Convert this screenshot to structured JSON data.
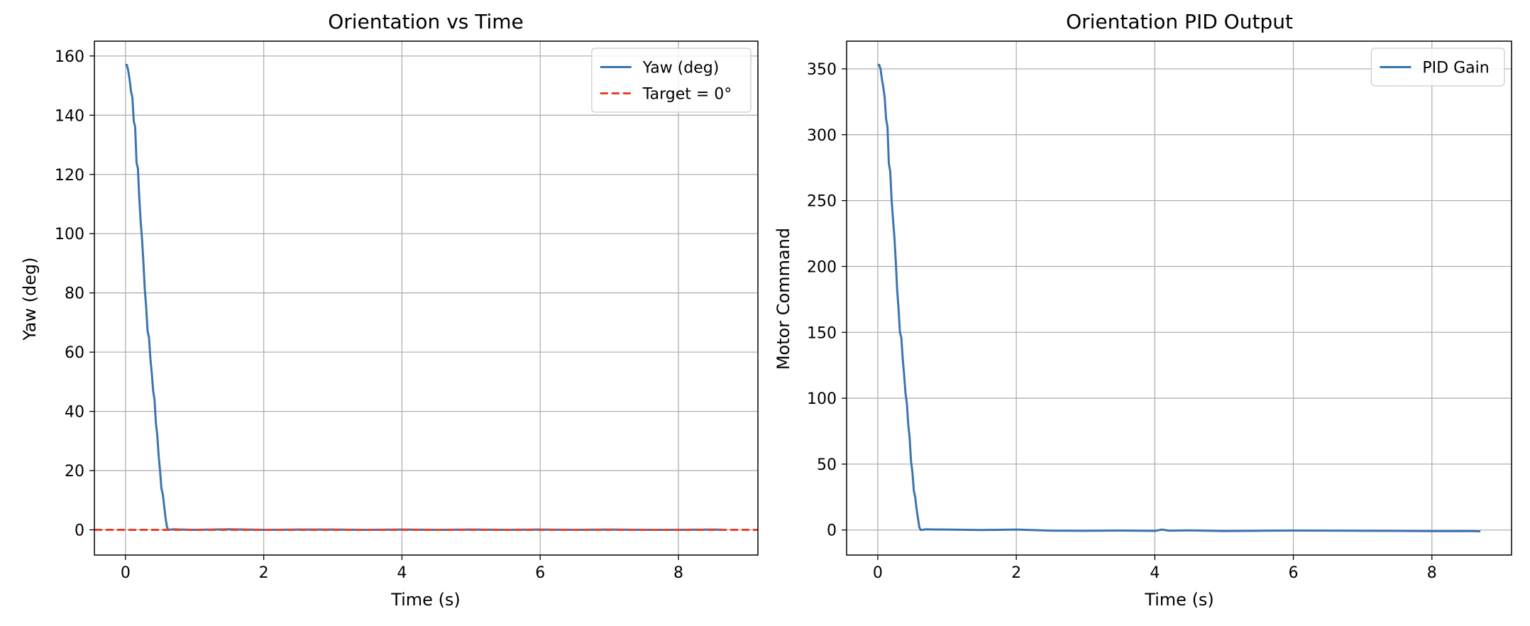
{
  "chart_data": [
    {
      "type": "line",
      "title": "Orientation vs Time",
      "xlabel": "Time (s)",
      "ylabel": "Yaw (deg)",
      "xlim": [
        -0.45,
        9.15
      ],
      "ylim": [
        -8.5,
        165
      ],
      "xticks": [
        0,
        2,
        4,
        6,
        8
      ],
      "yticks": [
        0,
        20,
        40,
        60,
        80,
        100,
        120,
        140,
        160
      ],
      "grid": true,
      "legend_position": "top-right",
      "series": [
        {
          "name": "Yaw (deg)",
          "color": "#3b75af",
          "style": "solid",
          "x": [
            0.0,
            0.02,
            0.04,
            0.06,
            0.08,
            0.1,
            0.12,
            0.14,
            0.16,
            0.18,
            0.2,
            0.22,
            0.24,
            0.26,
            0.28,
            0.3,
            0.32,
            0.34,
            0.36,
            0.38,
            0.4,
            0.42,
            0.44,
            0.46,
            0.48,
            0.5,
            0.52,
            0.54,
            0.56,
            0.58,
            0.6,
            0.62,
            0.7,
            0.8,
            1.0,
            1.5,
            2.0,
            2.5,
            3.0,
            3.5,
            4.0,
            4.5,
            5.0,
            5.5,
            6.0,
            6.5,
            7.0,
            7.5,
            8.0,
            8.5,
            8.7
          ],
          "y": [
            157,
            157,
            155,
            152,
            148,
            146,
            138,
            136,
            124,
            122,
            112,
            104,
            98,
            90,
            81,
            75,
            67,
            65,
            58,
            53,
            47,
            44,
            36,
            32,
            25,
            20,
            14,
            12,
            8,
            4,
            1,
            0,
            0.2,
            0.1,
            0,
            0.2,
            0,
            0.1,
            0.1,
            0,
            0.1,
            0,
            0.1,
            0,
            0.1,
            0,
            0.1,
            0,
            0,
            0.1,
            0
          ]
        },
        {
          "name": "Target = 0°",
          "color": "#e8412b",
          "style": "dashed",
          "x": [
            -0.45,
            9.15
          ],
          "y": [
            0,
            0
          ]
        }
      ]
    },
    {
      "type": "line",
      "title": "Orientation PID Output",
      "xlabel": "Time (s)",
      "ylabel": "Motor Command",
      "xlim": [
        -0.45,
        9.15
      ],
      "ylim": [
        -19,
        371
      ],
      "xticks": [
        0,
        2,
        4,
        6,
        8
      ],
      "yticks": [
        0,
        50,
        100,
        150,
        200,
        250,
        300,
        350
      ],
      "grid": true,
      "legend_position": "top-right",
      "series": [
        {
          "name": "PID Gain",
          "color": "#3b75af",
          "style": "solid",
          "x": [
            0.0,
            0.02,
            0.04,
            0.06,
            0.08,
            0.1,
            0.12,
            0.14,
            0.16,
            0.18,
            0.2,
            0.22,
            0.24,
            0.26,
            0.28,
            0.3,
            0.32,
            0.34,
            0.36,
            0.38,
            0.4,
            0.42,
            0.44,
            0.46,
            0.48,
            0.5,
            0.52,
            0.54,
            0.56,
            0.58,
            0.6,
            0.62,
            0.7,
            0.8,
            1.0,
            1.5,
            2.0,
            2.5,
            3.0,
            3.5,
            4.0,
            4.1,
            4.2,
            4.5,
            5.0,
            5.5,
            6.0,
            6.5,
            7.0,
            7.5,
            8.0,
            8.5,
            8.7
          ],
          "y": [
            353,
            353,
            350,
            342,
            336,
            328,
            312,
            306,
            278,
            272,
            250,
            236,
            222,
            204,
            182,
            168,
            150,
            146,
            130,
            118,
            104,
            96,
            80,
            70,
            52,
            44,
            30,
            25,
            16,
            9,
            2,
            0,
            0.5,
            0.4,
            0.3,
            0,
            0.3,
            -0.5,
            -0.6,
            -0.4,
            -0.7,
            0.3,
            -0.5,
            -0.3,
            -0.8,
            -0.6,
            -0.4,
            -0.5,
            -0.6,
            -0.7,
            -0.9,
            -0.8,
            -1
          ]
        }
      ]
    }
  ]
}
